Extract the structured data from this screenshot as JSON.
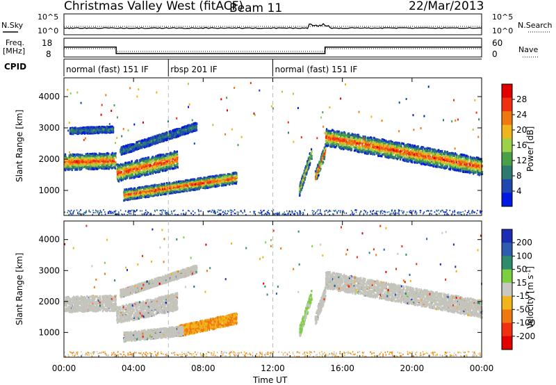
{
  "header": {
    "radar": "Christmas Valley West (fitACF)",
    "beam": "Beam 11",
    "date": "22/Mar/2013"
  },
  "top_panels": {
    "nsky_label": "N.Sky",
    "nsearch_label": "N.Search",
    "noise_ticks": [
      "10^5",
      "10^0"
    ],
    "freq_label": [
      "Freq.",
      "[MHz]"
    ],
    "freq_ticks": [
      "18",
      "8"
    ],
    "nave_label": "Nave",
    "nave_ticks": [
      "60",
      "0"
    ],
    "cpid_label": "CPID",
    "cpid_segments": [
      {
        "label": "normal (fast) 151 IF",
        "start_h": 0,
        "end_h": 6
      },
      {
        "label": "rbsp 201 IF",
        "start_h": 6,
        "end_h": 12
      },
      {
        "label": "normal (fast) 151 IF",
        "start_h": 12,
        "end_h": 24
      }
    ]
  },
  "chart_data": [
    {
      "type": "heatmap",
      "quantity": "Power",
      "ylabel": "Slant Range [km]",
      "ylim": [
        200,
        4600
      ],
      "yticks": [
        1000,
        2000,
        3000,
        4000
      ],
      "xlim_hours": [
        0,
        24
      ],
      "colorbar": {
        "label": "Power [dB]",
        "range": [
          0,
          32
        ],
        "ticks": [
          4,
          8,
          12,
          16,
          20,
          24,
          28
        ],
        "colors": [
          "#0018e0",
          "#1e48b0",
          "#2e7a70",
          "#4aa048",
          "#9ed04a",
          "#f0b41c",
          "#f07810",
          "#f03010",
          "#e00000"
        ]
      },
      "scatter_bands": [
        {
          "t": [
            0,
            2.95
          ],
          "center_km": [
            1900,
            1950
          ],
          "width_km": 500,
          "level": "strong"
        },
        {
          "t": [
            3.0,
            6.5
          ],
          "center_km": [
            1550,
            2000
          ],
          "width_km": 550,
          "level": "strong"
        },
        {
          "t": [
            3.2,
            7.6
          ],
          "center_km": [
            2250,
            3050
          ],
          "width_km": 250,
          "level": "weak"
        },
        {
          "t": [
            3.4,
            9.9
          ],
          "center_km": [
            850,
            1400
          ],
          "width_km": 350,
          "level": "strong"
        },
        {
          "t": [
            0.3,
            2.8
          ],
          "center_km": [
            2900,
            2950
          ],
          "width_km": 200,
          "level": "weak"
        },
        {
          "t": [
            13.5,
            14.2
          ],
          "center_km": [
            1000,
            2200
          ],
          "width_km": 350,
          "level": "medium"
        },
        {
          "t": [
            14.4,
            15.0
          ],
          "center_km": [
            1400,
            2300
          ],
          "width_km": 400,
          "level": "strong"
        },
        {
          "t": [
            15.0,
            24.0
          ],
          "center_km": [
            2700,
            1750
          ],
          "width_km": 550,
          "level": "strong"
        }
      ]
    },
    {
      "type": "heatmap",
      "quantity": "Velocity",
      "ylabel": "Slant Range [km]",
      "ylim": [
        200,
        4600
      ],
      "yticks": [
        1000,
        2000,
        3000,
        4000
      ],
      "xlim_hours": [
        0,
        24
      ],
      "xticks": [
        "00:00",
        "04:00",
        "08:00",
        "12:00",
        "16:00",
        "20:00",
        "00:00"
      ],
      "xlabel": "Time UT",
      "colorbar": {
        "label": "Velocity [m s^-1]",
        "ticks": [
          "200",
          "100",
          "50",
          "15",
          "-15",
          "-50",
          "-100",
          "-200"
        ],
        "colors": [
          "#1c2cb4",
          "#2e5cae",
          "#2e8c6c",
          "#7cd040",
          "#c8c8c0",
          "#f0b41c",
          "#f07810",
          "#f03010",
          "#e00000"
        ]
      },
      "scatter_bands": [
        {
          "t": [
            0,
            2.95
          ],
          "center_km": [
            1900,
            1950
          ],
          "width_km": 500,
          "class": "gs"
        },
        {
          "t": [
            3.0,
            6.5
          ],
          "center_km": [
            1550,
            2000
          ],
          "width_km": 550,
          "class": "gs"
        },
        {
          "t": [
            3.2,
            7.6
          ],
          "center_km": [
            2250,
            3050
          ],
          "width_km": 250,
          "class": "gs"
        },
        {
          "t": [
            6.6,
            9.9
          ],
          "center_km": [
            1050,
            1450
          ],
          "width_km": 350,
          "class": "neg"
        },
        {
          "t": [
            3.4,
            6.8
          ],
          "center_km": [
            850,
            1050
          ],
          "width_km": 300,
          "class": "gs"
        },
        {
          "t": [
            13.5,
            14.2
          ],
          "center_km": [
            1000,
            2200
          ],
          "width_km": 350,
          "class": "pos"
        },
        {
          "t": [
            14.4,
            15.0
          ],
          "center_km": [
            1400,
            2300
          ],
          "width_km": 400,
          "class": "gs"
        },
        {
          "t": [
            15.0,
            24.0
          ],
          "center_km": [
            2700,
            1750
          ],
          "width_km": 550,
          "class": "gs"
        }
      ]
    }
  ]
}
